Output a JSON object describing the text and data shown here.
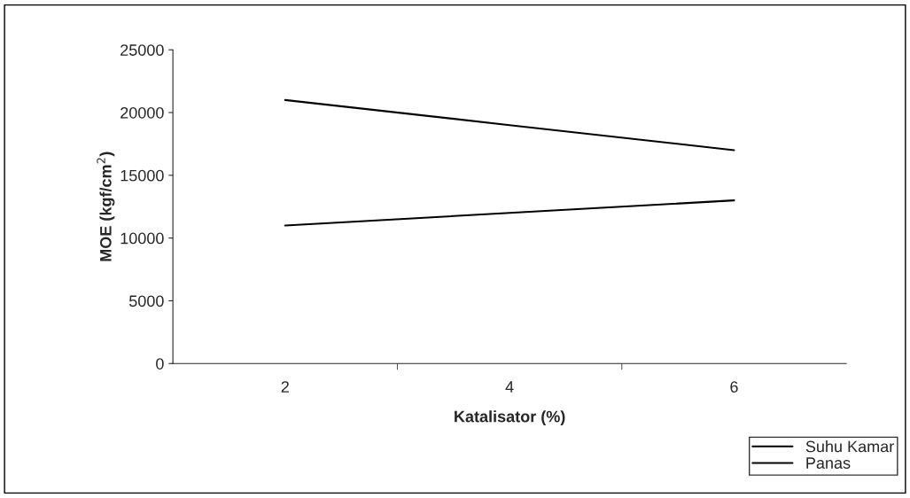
{
  "chart_data": {
    "type": "line",
    "xlabel": "Katalisator (%)",
    "ylabel": "MOE (kgf/cm$^{2}$)",
    "categories": [
      "2",
      "4",
      "6"
    ],
    "series": [
      {
        "name": "Suhu Kamar",
        "color": "#000000",
        "values": [
          11000,
          12000,
          13000
        ]
      },
      {
        "name": "Panas",
        "color": "#000000",
        "values": [
          21000,
          19000,
          17000
        ]
      }
    ],
    "ylim": [
      0,
      25000
    ],
    "yticks": [
      0,
      5000,
      10000,
      15000,
      20000,
      25000
    ],
    "grid": false,
    "legend": "bottom right",
    "marker": "none",
    "line_style": "solid"
  }
}
